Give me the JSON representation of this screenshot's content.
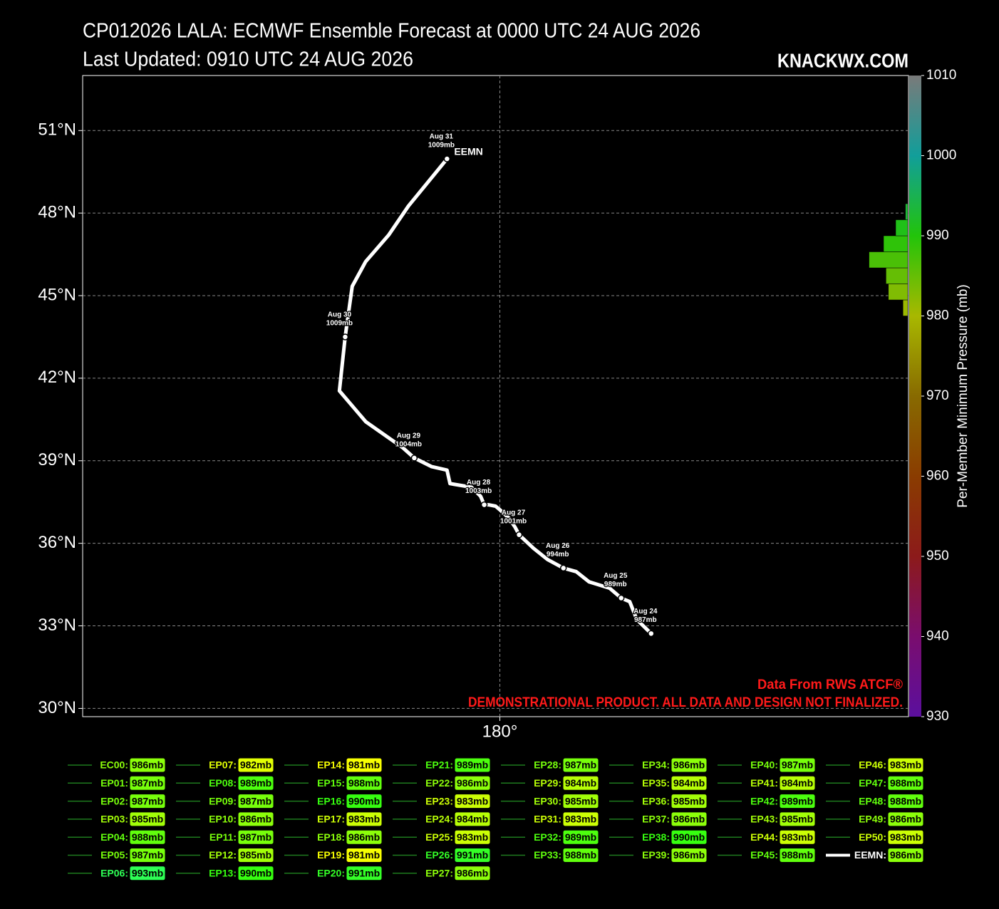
{
  "chart_data": {
    "type": "track",
    "title": "CP012026 LALA: ECMWF Ensemble Forecast at 0000 UTC 24 AUG 2026",
    "subtitle": "Last Updated: 0910 UTC 24 AUG 2026",
    "site": "KNACKWX.COM",
    "credits": [
      "Data From RWS ATCF®",
      "DEMONSTRATIONAL PRODUCT. ALL DATA AND DESIGN NOT FINALIZED."
    ],
    "xlim": [
      160.5,
      199.1
    ],
    "xticks": [
      {
        "value": 180,
        "label": "180°"
      }
    ],
    "ylim": [
      29.7,
      53
    ],
    "yticks": [
      {
        "value": 30,
        "label": "30°N"
      },
      {
        "value": 33,
        "label": "33°N"
      },
      {
        "value": 36,
        "label": "36°N"
      },
      {
        "value": 39,
        "label": "39°N"
      },
      {
        "value": 42,
        "label": "42°N"
      },
      {
        "value": 45,
        "label": "45°N"
      },
      {
        "value": 48,
        "label": "48°N"
      },
      {
        "value": 51,
        "label": "51°N"
      }
    ],
    "grid": true,
    "mean_track": {
      "name": "EEMN",
      "legend_label": "EEMN:",
      "color": "#ffffff",
      "min_pressure": 986,
      "min_pressure_label": "986mb",
      "x": [
        187.07,
        186.4,
        186.07,
        185.67,
        185.13,
        184.17,
        183.57,
        182.97,
        182.23,
        181.57,
        180.9,
        180.7,
        180.43,
        180.0,
        179.8,
        179.47,
        179.27,
        179.1,
        178.67,
        177.67,
        177.53,
        176.8,
        176.0,
        175.47,
        173.73,
        172.5,
        172.77,
        173.1,
        173.73,
        174.8,
        175.73,
        177.53
      ],
      "y": [
        32.72,
        33.23,
        33.88,
        34.01,
        34.37,
        34.6,
        34.97,
        35.1,
        35.41,
        35.82,
        36.31,
        36.6,
        36.91,
        37.22,
        37.35,
        37.4,
        37.4,
        37.71,
        38.04,
        38.17,
        38.66,
        38.79,
        39.1,
        39.47,
        40.42,
        41.54,
        43.5,
        45.34,
        46.24,
        47.2,
        48.26,
        49.97
      ],
      "points": {
        "x": [
          187.07,
          185.67,
          182.97,
          180.9,
          179.27,
          176.0,
          172.77,
          177.53
        ],
        "y": [
          32.72,
          34.01,
          35.1,
          36.31,
          37.4,
          39.1,
          43.5,
          49.97
        ],
        "dates": [
          "Aug 24",
          "Aug 25",
          "Aug 26",
          "Aug 27",
          "Aug 28",
          "Aug 29",
          "Aug 30",
          "Aug 31"
        ],
        "pressure": [
          987,
          989,
          994,
          1001,
          1003,
          1004,
          1009,
          1009
        ],
        "value_labels": [
          "987mb",
          "989mb",
          "994mb",
          "1001mb",
          "1003mb",
          "1004mb",
          "1009mb",
          "1009mb"
        ]
      }
    },
    "histogram": {
      "bins": [
        980,
        982,
        984,
        986,
        988,
        990,
        992,
        994
      ],
      "counts": [
        2,
        8,
        9,
        16,
        10,
        5,
        1
      ]
    },
    "colorbar": {
      "label": "Per-Member Minimum Pressure (mb)",
      "lim": [
        930,
        1010
      ],
      "ticks": [
        930,
        940,
        950,
        960,
        970,
        980,
        990,
        1000,
        1010
      ],
      "colors": [
        "#5b0f9e",
        "#7a0d6e",
        "#8c1a1a",
        "#8a3c00",
        "#886a00",
        "#a8b800",
        "#22c40a",
        "#119e9a",
        "#7a7a7a"
      ]
    },
    "members": {
      "color": "#1e7a1e",
      "names": [
        "EC00:",
        "EP01:",
        "EP02:",
        "EP03:",
        "EP04:",
        "EP05:",
        "EP06:",
        "EP07:",
        "EP08:",
        "EP09:",
        "EP10:",
        "EP11:",
        "EP12:",
        "EP13:",
        "EP14:",
        "EP15:",
        "EP16:",
        "EP17:",
        "EP18:",
        "EP19:",
        "EP20:",
        "EP21:",
        "EP22:",
        "EP23:",
        "EP24:",
        "EP25:",
        "EP26:",
        "EP27:",
        "EP28:",
        "EP29:",
        "EP30:",
        "EP31:",
        "EP32:",
        "EP33:",
        "EP34:",
        "EP35:",
        "EP36:",
        "EP37:",
        "EP38:",
        "EP39:",
        "EP40:",
        "EP41:",
        "EP42:",
        "EP43:",
        "EP44:",
        "EP45:",
        "EP46:",
        "EP47:",
        "EP48:",
        "EP49:",
        "EP50:"
      ],
      "values": [
        986,
        987,
        987,
        985,
        988,
        987,
        993,
        982,
        989,
        987,
        986,
        987,
        985,
        990,
        981,
        988,
        990,
        983,
        986,
        981,
        991,
        989,
        986,
        983,
        984,
        983,
        991,
        986,
        987,
        984,
        985,
        983,
        989,
        988,
        986,
        984,
        985,
        986,
        990,
        986,
        987,
        984,
        989,
        985,
        983,
        988,
        983,
        988,
        988,
        986,
        983
      ],
      "value_labels": [
        "986mb",
        "987mb",
        "987mb",
        "985mb",
        "988mb",
        "987mb",
        "993mb",
        "982mb",
        "989mb",
        "987mb",
        "986mb",
        "987mb",
        "985mb",
        "990mb",
        "981mb",
        "988mb",
        "990mb",
        "983mb",
        "986mb",
        "981mb",
        "991mb",
        "989mb",
        "986mb",
        "983mb",
        "984mb",
        "983mb",
        "991mb",
        "986mb",
        "987mb",
        "984mb",
        "985mb",
        "983mb",
        "989mb",
        "988mb",
        "986mb",
        "984mb",
        "985mb",
        "986mb",
        "990mb",
        "986mb",
        "987mb",
        "984mb",
        "989mb",
        "985mb",
        "983mb",
        "988mb",
        "983mb",
        "988mb",
        "988mb",
        "986mb",
        "983mb"
      ]
    }
  }
}
